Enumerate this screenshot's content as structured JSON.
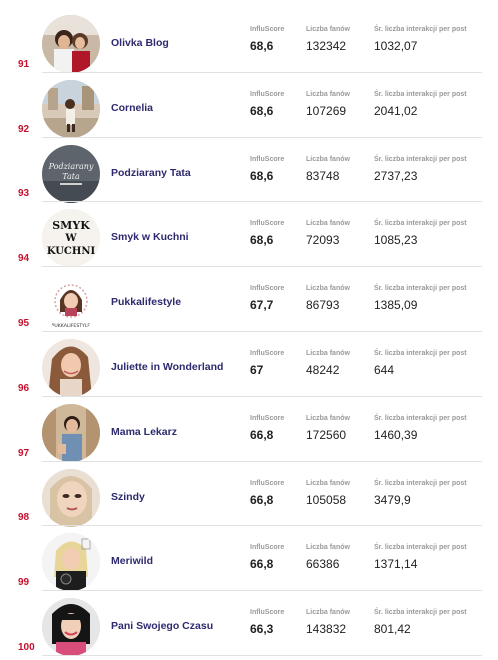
{
  "labels": {
    "score": "InfluScore",
    "fans": "Liczba fanów",
    "interactions": "Śr. liczba interakcji per post"
  },
  "accent_color": "#c8102e",
  "name_color": "#2d2a6e",
  "rows": [
    {
      "rank": "91",
      "name": "Olivka Blog",
      "score": "68,6",
      "fans": "132342",
      "interactions": "1032,07",
      "avatar": "olivka-blog-avatar"
    },
    {
      "rank": "92",
      "name": "Cornelia",
      "score": "68,6",
      "fans": "107269",
      "interactions": "2041,02",
      "avatar": "cornelia-avatar"
    },
    {
      "rank": "93",
      "name": "Podziarany Tata",
      "score": "68,6",
      "fans": "83748",
      "interactions": "2737,23",
      "avatar": "podziarany-tata-avatar",
      "avatar_text": [
        "Podziarany",
        "Tata"
      ]
    },
    {
      "rank": "94",
      "name": "Smyk w Kuchni",
      "score": "68,6",
      "fans": "72093",
      "interactions": "1085,23",
      "avatar": "smyk-w-kuchni-avatar",
      "avatar_text": [
        "SMYK",
        "W",
        "KUCHNI"
      ]
    },
    {
      "rank": "95",
      "name": "Pukkalifestyle",
      "score": "67,7",
      "fans": "86793",
      "interactions": "1385,09",
      "avatar": "pukkalifestyle-avatar",
      "avatar_text": [
        "PUKKALIFESTYLE"
      ]
    },
    {
      "rank": "96",
      "name": "Juliette in Wonderland",
      "score": "67",
      "fans": "48242",
      "interactions": "644",
      "avatar": "juliette-avatar"
    },
    {
      "rank": "97",
      "name": "Mama Lekarz",
      "score": "66,8",
      "fans": "172560",
      "interactions": "1460,39",
      "avatar": "mama-lekarz-avatar"
    },
    {
      "rank": "98",
      "name": "Szindy",
      "score": "66,8",
      "fans": "105058",
      "interactions": "3479,9",
      "avatar": "szindy-avatar"
    },
    {
      "rank": "99",
      "name": "Meriwild",
      "score": "66,8",
      "fans": "66386",
      "interactions": "1371,14",
      "avatar": "meriwild-avatar"
    },
    {
      "rank": "100",
      "name": "Pani Swojego Czasu",
      "score": "66,3",
      "fans": "143832",
      "interactions": "801,42",
      "avatar": "pani-swojego-czasu-avatar"
    }
  ]
}
